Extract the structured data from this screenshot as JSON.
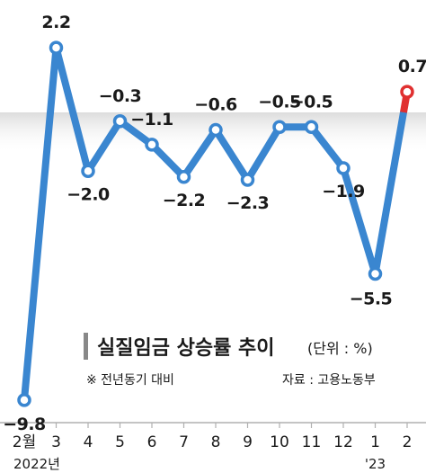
{
  "chart_data": {
    "type": "line",
    "title": "실질임금 상승률 추이",
    "unit": "(단위 : %)",
    "note": "※ 전년동기 대비",
    "source": "자료 : 고용노동부",
    "categories": [
      "2월",
      "3",
      "4",
      "5",
      "6",
      "7",
      "8",
      "9",
      "10",
      "11",
      "12",
      "1",
      "2"
    ],
    "year_labels": [
      {
        "index": 0,
        "text": "2022년"
      },
      {
        "index": 11,
        "text": "'23"
      }
    ],
    "values": [
      -9.8,
      2.2,
      -2.0,
      -0.3,
      -1.1,
      -2.2,
      -0.6,
      -2.3,
      -0.5,
      -0.5,
      -1.9,
      -5.5,
      0.7
    ],
    "value_labels": [
      "−9.8",
      "2.2",
      "−2.0",
      "−0.3",
      "−1.1",
      "−2.2",
      "−0.6",
      "−2.3",
      "−0.5",
      "−0.5",
      "−1.9",
      "−5.5",
      "0.7"
    ],
    "ylim": [
      -11,
      3.4
    ],
    "zero_band": true,
    "grid": false,
    "colors": {
      "line": "#3a86d0",
      "marker_fill": "#ffffff",
      "last_segment": "#e03030",
      "zero_band": "#dcdcdc",
      "title_bar": "#888888",
      "axis": "#b0b0b0"
    }
  }
}
